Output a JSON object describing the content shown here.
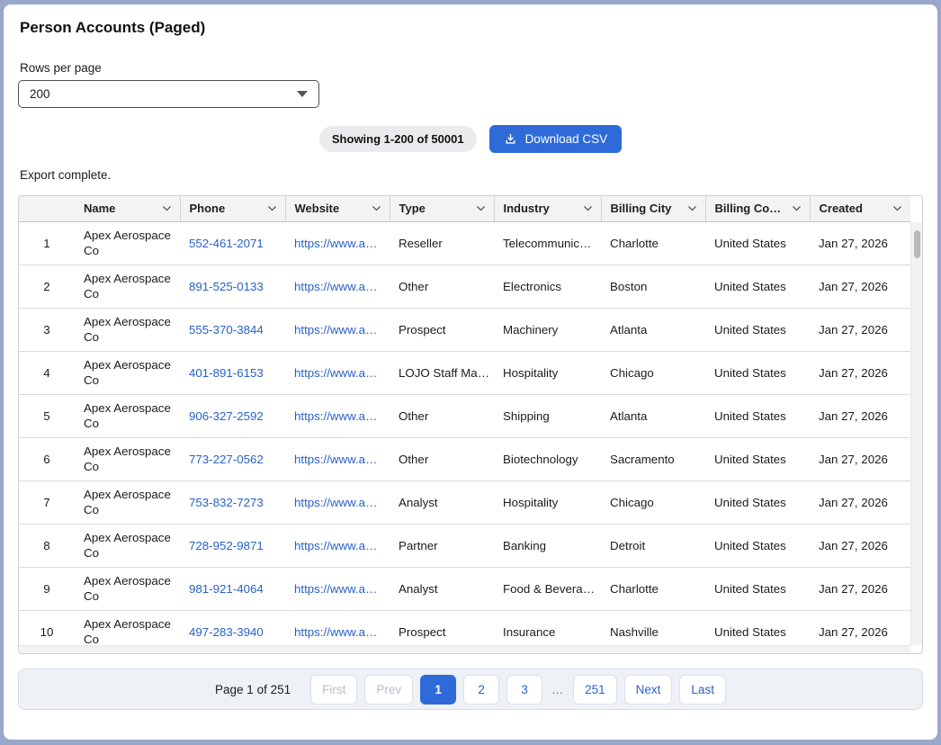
{
  "page": {
    "title": "Person Accounts (Paged)",
    "status_text": "Export complete."
  },
  "controls": {
    "rows_per_page_label": "Rows per page",
    "rows_per_page_value": "200",
    "showing_badge": "Showing 1-200 of 50001",
    "download_button_label": "Download CSV"
  },
  "table": {
    "columns": [
      "Name",
      "Phone",
      "Website",
      "Type",
      "Industry",
      "Billing City",
      "Billing Co…",
      "Created"
    ],
    "rows": [
      {
        "num": "1",
        "name": "Apex Aerospace Co",
        "phone": "552-461-2071",
        "website": "https://www.a…",
        "type": "Reseller",
        "industry": "Telecommunic…",
        "billing_city": "Charlotte",
        "billing_country": "United States",
        "created": "Jan 27, 2026"
      },
      {
        "num": "2",
        "name": "Apex Aerospace Co",
        "phone": "891-525-0133",
        "website": "https://www.a…",
        "type": "Other",
        "industry": "Electronics",
        "billing_city": "Boston",
        "billing_country": "United States",
        "created": "Jan 27, 2026"
      },
      {
        "num": "3",
        "name": "Apex Aerospace Co",
        "phone": "555-370-3844",
        "website": "https://www.a…",
        "type": "Prospect",
        "industry": "Machinery",
        "billing_city": "Atlanta",
        "billing_country": "United States",
        "created": "Jan 27, 2026"
      },
      {
        "num": "4",
        "name": "Apex Aerospace Co",
        "phone": "401-891-6153",
        "website": "https://www.a…",
        "type": "LOJO Staff Ma…",
        "industry": "Hospitality",
        "billing_city": "Chicago",
        "billing_country": "United States",
        "created": "Jan 27, 2026"
      },
      {
        "num": "5",
        "name": "Apex Aerospace Co",
        "phone": "906-327-2592",
        "website": "https://www.a…",
        "type": "Other",
        "industry": "Shipping",
        "billing_city": "Atlanta",
        "billing_country": "United States",
        "created": "Jan 27, 2026"
      },
      {
        "num": "6",
        "name": "Apex Aerospace Co",
        "phone": "773-227-0562",
        "website": "https://www.a…",
        "type": "Other",
        "industry": "Biotechnology",
        "billing_city": "Sacramento",
        "billing_country": "United States",
        "created": "Jan 27, 2026"
      },
      {
        "num": "7",
        "name": "Apex Aerospace Co",
        "phone": "753-832-7273",
        "website": "https://www.a…",
        "type": "Analyst",
        "industry": "Hospitality",
        "billing_city": "Chicago",
        "billing_country": "United States",
        "created": "Jan 27, 2026"
      },
      {
        "num": "8",
        "name": "Apex Aerospace Co",
        "phone": "728-952-9871",
        "website": "https://www.a…",
        "type": "Partner",
        "industry": "Banking",
        "billing_city": "Detroit",
        "billing_country": "United States",
        "created": "Jan 27, 2026"
      },
      {
        "num": "9",
        "name": "Apex Aerospace Co",
        "phone": "981-921-4064",
        "website": "https://www.a…",
        "type": "Analyst",
        "industry": "Food & Bevera…",
        "billing_city": "Charlotte",
        "billing_country": "United States",
        "created": "Jan 27, 2026"
      },
      {
        "num": "10",
        "name": "Apex Aerospace Co",
        "phone": "497-283-3940",
        "website": "https://www.a…",
        "type": "Prospect",
        "industry": "Insurance",
        "billing_city": "Nashville",
        "billing_country": "United States",
        "created": "Jan 27, 2026"
      }
    ]
  },
  "pagination": {
    "summary": "Page 1 of 251",
    "buttons": [
      {
        "label": "First",
        "state": "disabled"
      },
      {
        "label": "Prev",
        "state": "disabled"
      },
      {
        "label": "1",
        "state": "active"
      },
      {
        "label": "2",
        "state": "normal"
      },
      {
        "label": "3",
        "state": "normal"
      },
      {
        "label": "…",
        "state": "ellipsis"
      },
      {
        "label": "251",
        "state": "normal"
      },
      {
        "label": "Next",
        "state": "normal"
      },
      {
        "label": "Last",
        "state": "normal"
      }
    ]
  },
  "colors": {
    "accent": "#2e6bd9",
    "link": "#2761c8",
    "header_bg": "#f3f3f3",
    "badge_bg": "#ebebed",
    "pagination_bg": "#eef1f5",
    "disabled_text": "#b6bdc9",
    "frame": "#97a8ca"
  }
}
